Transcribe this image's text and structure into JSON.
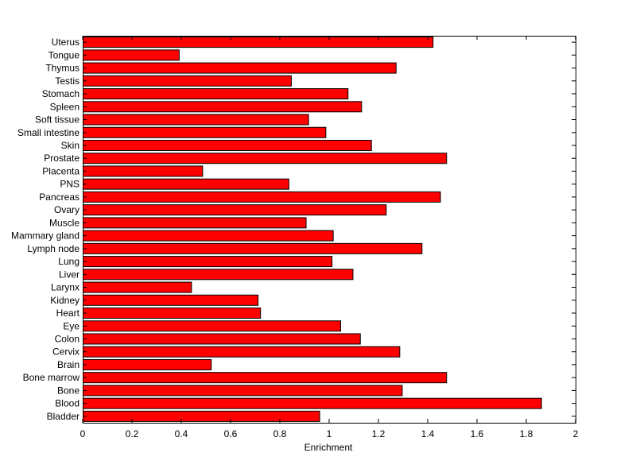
{
  "chart_data": {
    "type": "bar",
    "orientation": "horizontal",
    "title": "",
    "xlabel": "Enrichment",
    "ylabel": "",
    "xlim": [
      0,
      2
    ],
    "xticks": [
      0,
      0.2,
      0.4,
      0.6,
      0.8,
      1,
      1.2,
      1.4,
      1.6,
      1.8,
      2
    ],
    "xtick_labels": [
      "0",
      "0.2",
      "0.4",
      "0.6",
      "0.8",
      "1",
      "1.2",
      "1.4",
      "1.6",
      "1.8",
      "2"
    ],
    "grid": false,
    "legend": "none",
    "bar_color": "#ff0000",
    "categories": [
      "Bladder",
      "Blood",
      "Bone",
      "Bone marrow",
      "Brain",
      "Cervix",
      "Colon",
      "Eye",
      "Heart",
      "Kidney",
      "Larynx",
      "Liver",
      "Lung",
      "Lymph node",
      "Mammary gland",
      "Muscle",
      "Ovary",
      "Pancreas",
      "PNS",
      "Placenta",
      "Prostate",
      "Skin",
      "Small intestine",
      "Soft tissue",
      "Spleen",
      "Stomach",
      "Testis",
      "Thymus",
      "Tongue",
      "Uterus"
    ],
    "values": [
      0.96,
      1.86,
      1.295,
      1.475,
      0.52,
      1.285,
      1.125,
      1.045,
      0.72,
      0.71,
      0.44,
      1.095,
      1.01,
      1.375,
      1.015,
      0.905,
      1.23,
      1.45,
      0.835,
      0.485,
      1.475,
      1.17,
      0.985,
      0.915,
      1.13,
      1.075,
      0.845,
      1.27,
      0.39,
      1.42
    ]
  }
}
